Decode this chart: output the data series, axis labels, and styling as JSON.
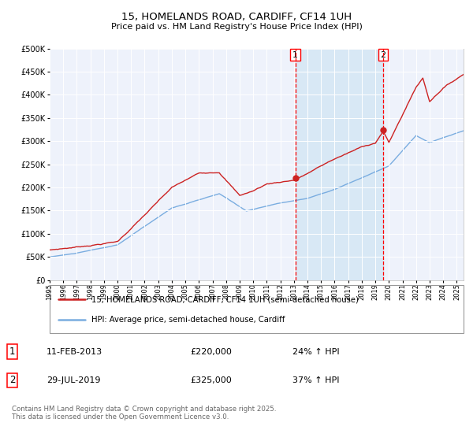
{
  "title": "15, HOMELANDS ROAD, CARDIFF, CF14 1UH",
  "subtitle": "Price paid vs. HM Land Registry's House Price Index (HPI)",
  "legend_line1": "15, HOMELANDS ROAD, CARDIFF, CF14 1UH (semi-detached house)",
  "legend_line2": "HPI: Average price, semi-detached house, Cardiff",
  "annotation1_label": "1",
  "annotation1_date": "11-FEB-2013",
  "annotation1_price": "£220,000",
  "annotation1_hpi": "24% ↑ HPI",
  "annotation1_year": 2013.1,
  "annotation1_value": 220000,
  "annotation2_label": "2",
  "annotation2_date": "29-JUL-2019",
  "annotation2_price": "£325,000",
  "annotation2_hpi": "37% ↑ HPI",
  "annotation2_year": 2019.58,
  "annotation2_value": 325000,
  "footer": "Contains HM Land Registry data © Crown copyright and database right 2025.\nThis data is licensed under the Open Government Licence v3.0.",
  "hpi_color": "#7aade0",
  "price_color": "#cc2222",
  "background_color": "#ffffff",
  "plot_bg_color": "#eef2fb",
  "shading_color": "#d8e8f5",
  "ylim": [
    0,
    500000
  ],
  "xlim_start": 1995,
  "xlim_end": 2025.5,
  "title_fontsize": 9.5,
  "subtitle_fontsize": 8
}
